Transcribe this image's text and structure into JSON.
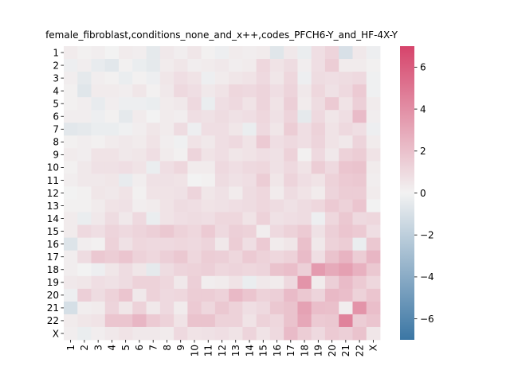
{
  "chart_data": {
    "type": "heatmap",
    "title": "female_fibroblast,conditions_none_and_x++,codes_PFCH6-Y_and_HF-4X-Y",
    "xlabel": "",
    "ylabel": "",
    "categories": [
      "1",
      "2",
      "3",
      "4",
      "5",
      "6",
      "7",
      "8",
      "9",
      "10",
      "11",
      "12",
      "13",
      "14",
      "15",
      "16",
      "17",
      "18",
      "19",
      "20",
      "21",
      "22",
      "X"
    ],
    "colorbar": {
      "min": -7,
      "max": 7,
      "ticks": [
        -6,
        -4,
        -2,
        0,
        2,
        4,
        6
      ],
      "tick_labels": [
        "−6",
        "−4",
        "−2",
        "0",
        "2",
        "4",
        "6"
      ],
      "low_color": "#3b76a4",
      "mid_color": "#f2f2f2",
      "high_color": "#d6446b"
    },
    "values": [
      [
        0.3,
        0.1,
        0.2,
        0.0,
        0.3,
        0.2,
        -0.5,
        0.4,
        0.2,
        0.5,
        0.1,
        -0.2,
        0.3,
        0.2,
        0.3,
        -0.7,
        0.4,
        -0.3,
        0.8,
        1.2,
        -1.0,
        0.4,
        -0.2
      ],
      [
        -0.2,
        0.2,
        -0.4,
        -0.6,
        0.1,
        -0.3,
        -0.5,
        0.3,
        0.5,
        0.2,
        0.3,
        0.4,
        0.2,
        0.3,
        1.1,
        0.6,
        0.9,
        0.2,
        0.8,
        1.5,
        0.3,
        0.3,
        0.1
      ],
      [
        0.2,
        -0.5,
        0.2,
        0.1,
        -0.3,
        0.1,
        -0.2,
        0.5,
        0.8,
        0.6,
        -0.2,
        0.3,
        0.5,
        0.6,
        1.0,
        0.5,
        1.1,
        -0.2,
        0.9,
        0.8,
        0.9,
        1.0,
        -0.1
      ],
      [
        0.1,
        -0.7,
        0.3,
        0.3,
        0.2,
        0.5,
        0.1,
        0.4,
        1.0,
        0.8,
        0.4,
        0.6,
        1.1,
        1.0,
        1.2,
        0.8,
        1.2,
        0.4,
        1.1,
        0.7,
        1.0,
        1.6,
        -0.1
      ],
      [
        0.1,
        0.2,
        -0.4,
        0.2,
        -0.2,
        -0.2,
        -0.3,
        0.3,
        0.4,
        1.0,
        -0.3,
        0.8,
        1.0,
        0.6,
        1.2,
        0.6,
        1.4,
        0.3,
        0.9,
        1.6,
        0.6,
        1.4,
        0.3
      ],
      [
        0.2,
        0.2,
        -0.2,
        0.1,
        -0.5,
        0.3,
        0.0,
        0.3,
        0.2,
        0.8,
        0.7,
        0.9,
        0.7,
        0.8,
        1.1,
        0.7,
        1.2,
        -0.5,
        1.0,
        0.5,
        0.8,
        2.2,
        0.2
      ],
      [
        -0.6,
        -0.5,
        -0.3,
        -0.3,
        -0.1,
        0.2,
        0.5,
        0.3,
        0.9,
        -0.2,
        0.8,
        0.8,
        0.5,
        -0.3,
        1.0,
        0.5,
        1.5,
        0.8,
        1.3,
        0.6,
        1.0,
        0.8,
        -0.2
      ],
      [
        0.1,
        0.2,
        0.1,
        0.3,
        0.4,
        0.3,
        0.6,
        0.2,
        -0.1,
        0.6,
        0.4,
        0.8,
        1.0,
        0.6,
        1.6,
        0.8,
        1.0,
        0.8,
        1.2,
        0.6,
        0.4,
        1.2,
        0.3
      ],
      [
        0.3,
        0.2,
        0.6,
        0.6,
        0.4,
        0.5,
        0.8,
        0.3,
        0.1,
        1.2,
        0.6,
        0.8,
        0.5,
        0.6,
        0.8,
        0.7,
        1.3,
        0.1,
        1.0,
        0.4,
        1.3,
        1.5,
        0.6
      ],
      [
        0.1,
        0.4,
        0.7,
        0.7,
        0.8,
        0.6,
        -0.3,
        0.8,
        1.1,
        0.3,
        0.3,
        1.0,
        0.8,
        1.0,
        1.1,
        0.7,
        1.0,
        0.6,
        1.5,
        1.0,
        1.8,
        1.9,
        0.3
      ],
      [
        0.2,
        0.4,
        0.4,
        0.5,
        -0.4,
        0.2,
        0.7,
        0.7,
        0.6,
        0.0,
        0.1,
        0.9,
        0.7,
        0.8,
        1.5,
        0.5,
        1.2,
        0.8,
        0.6,
        1.3,
        1.6,
        1.7,
        0.2
      ],
      [
        0.0,
        0.1,
        0.5,
        0.4,
        0.6,
        0.1,
        0.6,
        0.6,
        0.7,
        1.2,
        0.5,
        0.7,
        0.3,
        0.9,
        1.1,
        0.3,
        0.9,
        0.6,
        0.3,
        1.2,
        1.5,
        1.5,
        0.3
      ],
      [
        0.1,
        0.1,
        0.3,
        0.6,
        0.7,
        0.2,
        0.3,
        0.6,
        0.9,
        0.8,
        0.6,
        0.7,
        0.8,
        0.9,
        1.1,
        0.9,
        0.7,
        0.9,
        1.1,
        1.6,
        1.3,
        1.8,
        0.0
      ],
      [
        0.3,
        -0.3,
        0.4,
        0.9,
        0.4,
        1.0,
        -0.3,
        0.6,
        0.8,
        0.9,
        0.8,
        1.1,
        1.1,
        0.6,
        1.3,
        0.7,
        0.8,
        0.9,
        -0.2,
        1.1,
        1.7,
        1.0,
        1.1
      ],
      [
        0.3,
        1.0,
        0.8,
        1.2,
        1.0,
        1.2,
        1.4,
        1.7,
        1.3,
        1.1,
        1.6,
        1.0,
        1.4,
        1.3,
        0.2,
        1.0,
        1.3,
        1.6,
        0.7,
        1.4,
        1.8,
        1.6,
        0.8
      ],
      [
        -0.8,
        0.2,
        0.1,
        1.3,
        0.7,
        1.1,
        1.0,
        1.0,
        1.1,
        1.0,
        1.2,
        0.4,
        1.5,
        0.8,
        1.6,
        0.3,
        0.5,
        2.0,
        0.4,
        1.3,
        1.5,
        -0.3,
        1.7
      ],
      [
        0.2,
        0.9,
        1.7,
        1.5,
        1.8,
        1.3,
        1.1,
        1.4,
        1.7,
        1.1,
        1.5,
        1.4,
        1.1,
        1.6,
        1.3,
        1.1,
        1.3,
        2.2,
        0.8,
        1.9,
        2.5,
        1.5,
        2.4
      ],
      [
        0.2,
        0.0,
        -0.2,
        0.5,
        0.9,
        0.5,
        -0.5,
        0.9,
        1.2,
        1.3,
        1.4,
        1.1,
        1.2,
        1.1,
        1.2,
        1.9,
        2.1,
        1.4,
        3.5,
        2.9,
        3.3,
        2.6,
        1.7
      ],
      [
        0.4,
        0.5,
        0.8,
        0.7,
        0.9,
        1.3,
        1.3,
        1.1,
        0.4,
        1.4,
        0.2,
        0.3,
        0.6,
        -0.3,
        0.4,
        0.3,
        1.0,
        3.8,
        0.3,
        1.4,
        2.2,
        1.6,
        1.1
      ],
      [
        -0.2,
        1.4,
        0.9,
        1.3,
        1.8,
        0.4,
        1.3,
        1.0,
        1.1,
        1.5,
        1.5,
        1.3,
        2.3,
        1.8,
        1.3,
        1.4,
        2.2,
        1.7,
        1.2,
        2.3,
        2.1,
        1.3,
        1.8
      ],
      [
        -1.1,
        0.2,
        0.3,
        1.2,
        0.5,
        1.3,
        0.4,
        1.0,
        0.3,
        1.6,
        1.1,
        1.7,
        1.3,
        0.8,
        1.0,
        1.7,
        1.9,
        3.2,
        2.1,
        2.0,
        0.2,
        3.8,
        2.1
      ],
      [
        0.3,
        0.5,
        0.6,
        1.8,
        1.8,
        2.4,
        1.6,
        1.3,
        0.6,
        1.9,
        1.9,
        1.3,
        1.3,
        0.6,
        1.3,
        1.1,
        1.9,
        3.0,
        1.6,
        1.7,
        4.5,
        1.5,
        1.8
      ],
      [
        0.2,
        -0.3,
        0.2,
        0.4,
        0.6,
        0.4,
        0.4,
        0.3,
        1.0,
        0.6,
        0.7,
        0.8,
        0.6,
        1.2,
        0.6,
        1.0,
        2.2,
        1.5,
        1.0,
        1.6,
        1.4,
        1.9,
        0.5
      ]
    ]
  }
}
